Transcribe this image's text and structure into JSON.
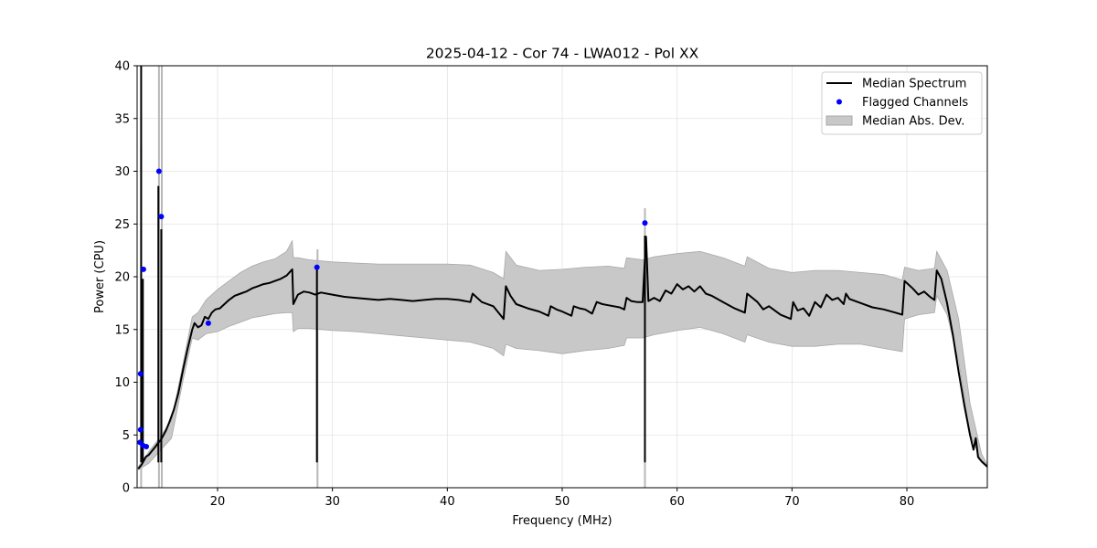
{
  "chart_data": {
    "type": "line",
    "title": "2025-04-12 - Cor 74 - LWA012 - Pol XX",
    "xlabel": "Frequency (MHz)",
    "ylabel": "Power (CPU)",
    "xlim": [
      13.0,
      87.0
    ],
    "ylim": [
      0,
      40
    ],
    "xticks": [
      20,
      30,
      40,
      50,
      60,
      70,
      80
    ],
    "yticks": [
      0,
      5,
      10,
      15,
      20,
      25,
      30,
      35,
      40
    ],
    "grid": true,
    "legend_position": "top-right",
    "legend": [
      {
        "label": "Median Spectrum",
        "kind": "line",
        "color": "#000000"
      },
      {
        "label": "Flagged Channels",
        "kind": "marker",
        "color": "#0000ff"
      },
      {
        "label": "Median Abs. Dev.",
        "kind": "patch",
        "color": "#c8c8c8"
      }
    ],
    "series": [
      {
        "name": "Median Spectrum",
        "color": "#000000",
        "x": [
          13.1,
          13.4,
          13.6,
          13.75,
          13.85,
          14.0,
          14.3,
          14.6,
          14.8,
          14.95,
          15.1,
          15.3,
          15.5,
          15.8,
          16.2,
          16.6,
          17.0,
          17.4,
          17.8,
          18.0,
          18.3,
          18.6,
          18.9,
          19.2,
          19.5,
          19.8,
          20.2,
          20.6,
          21.0,
          21.5,
          22.0,
          22.5,
          23.0,
          23.5,
          24.0,
          24.5,
          25.0,
          25.5,
          26.0,
          26.5,
          26.6,
          27.0,
          27.5,
          28.0,
          28.5,
          29.0,
          30.0,
          31.0,
          32.0,
          33.0,
          34.0,
          35.0,
          36.0,
          37.0,
          38.0,
          39.0,
          40.0,
          41.0,
          42.0,
          42.2,
          43.0,
          44.0,
          44.9,
          45.1,
          45.5,
          46.0,
          47.0,
          48.0,
          48.8,
          49.0,
          49.5,
          50.0,
          50.8,
          51.0,
          51.5,
          52.0,
          52.6,
          53.0,
          53.5,
          54.0,
          55.0,
          55.4,
          55.6,
          56.0,
          56.5,
          57.0,
          57.3,
          57.5,
          58.0,
          58.5,
          59.0,
          59.5,
          60.0,
          60.5,
          61.0,
          61.5,
          62.0,
          62.5,
          63.0,
          64.0,
          65.0,
          65.9,
          66.1,
          67.0,
          67.5,
          68.0,
          69.0,
          69.9,
          70.1,
          70.5,
          71.0,
          71.5,
          72.0,
          72.5,
          73.0,
          73.5,
          74.0,
          74.5,
          74.7,
          75.0,
          76.0,
          77.0,
          78.0,
          79.0,
          79.6,
          79.8,
          80.5,
          81.0,
          81.5,
          82.0,
          82.4,
          82.6,
          83.0,
          83.5,
          84.0,
          84.5,
          85.0,
          85.5,
          85.8,
          86.0,
          86.2,
          86.5,
          87.0
        ],
        "values": [
          1.8,
          2.2,
          2.6,
          2.9,
          3.0,
          3.1,
          3.5,
          3.9,
          4.2,
          4.4,
          4.6,
          5.0,
          5.4,
          6.2,
          7.4,
          9.0,
          11.2,
          13.2,
          15.0,
          15.6,
          15.2,
          15.4,
          16.2,
          16.0,
          16.6,
          16.9,
          17.0,
          17.4,
          17.8,
          18.2,
          18.4,
          18.6,
          18.9,
          19.1,
          19.3,
          19.4,
          19.6,
          19.8,
          20.1,
          20.7,
          17.4,
          18.3,
          18.6,
          18.5,
          18.3,
          18.5,
          18.3,
          18.1,
          18.0,
          17.9,
          17.8,
          17.9,
          17.8,
          17.7,
          17.8,
          17.9,
          17.9,
          17.8,
          17.6,
          18.4,
          17.6,
          17.2,
          16.0,
          19.1,
          18.2,
          17.4,
          17.0,
          16.7,
          16.3,
          17.2,
          16.9,
          16.7,
          16.3,
          17.2,
          17.0,
          16.9,
          16.5,
          17.6,
          17.4,
          17.3,
          17.1,
          16.9,
          18.0,
          17.7,
          17.6,
          17.6,
          23.8,
          17.7,
          18.0,
          17.7,
          18.7,
          18.4,
          19.3,
          18.8,
          19.1,
          18.6,
          19.1,
          18.4,
          18.2,
          17.6,
          17.0,
          16.6,
          18.4,
          17.6,
          16.9,
          17.2,
          16.4,
          16.0,
          17.6,
          16.8,
          17.0,
          16.3,
          17.6,
          17.1,
          18.3,
          17.8,
          18.0,
          17.4,
          18.4,
          17.9,
          17.5,
          17.1,
          16.9,
          16.6,
          16.4,
          19.6,
          18.9,
          18.3,
          18.6,
          18.1,
          17.8,
          20.6,
          19.8,
          17.5,
          14.5,
          11.0,
          7.8,
          5.0,
          3.6,
          4.7,
          2.9,
          2.5,
          2.0
        ]
      }
    ],
    "mad_band": {
      "name": "Median Abs. Dev.",
      "color": "#c8c8c8",
      "x": [
        13.1,
        14.0,
        15.0,
        16.0,
        17.0,
        17.8,
        18.3,
        19.0,
        20.0,
        21.0,
        22.0,
        23.0,
        24.0,
        25.0,
        26.0,
        26.5,
        26.6,
        27.0,
        28.0,
        29.0,
        30.0,
        32.0,
        34.0,
        36.0,
        38.0,
        40.0,
        42.0,
        44.0,
        44.9,
        45.1,
        46.0,
        48.0,
        50.0,
        52.0,
        54.0,
        55.4,
        55.6,
        57.0,
        58.0,
        60.0,
        62.0,
        64.0,
        65.9,
        66.1,
        68.0,
        70.0,
        72.0,
        74.0,
        76.0,
        78.0,
        79.6,
        79.8,
        81.0,
        82.4,
        82.6,
        83.5,
        84.5,
        85.5,
        86.5,
        87.0
      ],
      "upper": [
        2.0,
        3.4,
        4.8,
        6.4,
        11.8,
        16.2,
        16.6,
        17.8,
        18.8,
        19.6,
        20.4,
        21.0,
        21.4,
        21.7,
        22.4,
        23.4,
        21.8,
        21.8,
        21.6,
        21.5,
        21.4,
        21.3,
        21.2,
        21.2,
        21.2,
        21.2,
        21.1,
        20.4,
        19.8,
        22.4,
        21.1,
        20.6,
        20.7,
        20.9,
        21.0,
        20.8,
        21.8,
        21.6,
        21.9,
        22.2,
        22.4,
        21.8,
        21.0,
        21.9,
        20.8,
        20.4,
        20.6,
        20.6,
        20.4,
        20.2,
        19.7,
        20.9,
        20.6,
        20.8,
        22.4,
        20.6,
        16.0,
        8.0,
        3.2,
        2.2
      ],
      "lower": [
        1.7,
        2.3,
        3.5,
        4.7,
        10.2,
        14.2,
        14.0,
        14.6,
        14.8,
        15.3,
        15.7,
        16.1,
        16.3,
        16.5,
        16.6,
        16.6,
        14.8,
        15.1,
        15.1,
        15.0,
        14.9,
        14.8,
        14.6,
        14.4,
        14.2,
        14.0,
        13.8,
        13.2,
        12.5,
        13.6,
        13.2,
        13.0,
        12.7,
        13.0,
        13.2,
        13.5,
        14.2,
        14.2,
        14.5,
        14.9,
        15.2,
        14.6,
        13.8,
        14.5,
        13.8,
        13.4,
        13.4,
        13.6,
        13.6,
        13.2,
        12.9,
        16.0,
        16.4,
        16.6,
        18.2,
        16.4,
        12.0,
        5.2,
        2.4,
        1.9
      ]
    },
    "spikes": [
      {
        "x": 13.35,
        "value": 42.0
      },
      {
        "x": 13.5,
        "value": 19.8
      },
      {
        "x": 14.85,
        "value": 28.6
      },
      {
        "x": 15.1,
        "value": 24.5
      },
      {
        "x": 28.65,
        "value": 20.8
      },
      {
        "x": 57.2,
        "value": 23.9
      }
    ],
    "band_spikes": [
      {
        "x": 13.35,
        "value": 32.3
      },
      {
        "x": 14.9,
        "value": 45.0
      },
      {
        "x": 15.15,
        "value": 45.0
      },
      {
        "x": 28.7,
        "value": 22.6
      },
      {
        "x": 57.2,
        "value": 26.5
      }
    ],
    "flagged_channels": [
      {
        "x": 13.25,
        "value": 4.3
      },
      {
        "x": 13.3,
        "value": 5.5
      },
      {
        "x": 13.3,
        "value": 10.8
      },
      {
        "x": 13.5,
        "value": 4.0
      },
      {
        "x": 13.55,
        "value": 20.7
      },
      {
        "x": 13.8,
        "value": 3.9
      },
      {
        "x": 14.9,
        "value": 30.0
      },
      {
        "x": 15.1,
        "value": 25.7
      },
      {
        "x": 19.2,
        "value": 15.6
      },
      {
        "x": 28.65,
        "value": 20.9
      },
      {
        "x": 57.2,
        "value": 25.1
      }
    ]
  }
}
